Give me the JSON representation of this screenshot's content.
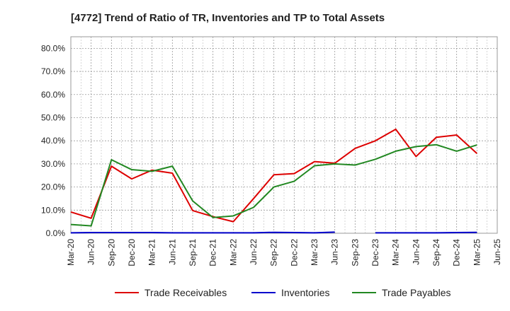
{
  "chart_data": {
    "type": "line",
    "title": "[4772]  Trend of Ratio of TR, Inventories and TP to Total Assets",
    "xlabel": "",
    "ylabel": "",
    "ylim": [
      0,
      85
    ],
    "yticks": [
      0,
      10,
      20,
      30,
      40,
      50,
      60,
      70,
      80
    ],
    "ytick_labels": [
      "0.0%",
      "10.0%",
      "20.0%",
      "30.0%",
      "40.0%",
      "50.0%",
      "60.0%",
      "70.0%",
      "80.0%"
    ],
    "x": [
      "Mar-20",
      "Jun-20",
      "Sep-20",
      "Dec-20",
      "Mar-21",
      "Jun-21",
      "Sep-21",
      "Dec-21",
      "Mar-22",
      "Jun-22",
      "Sep-22",
      "Dec-22",
      "Mar-23",
      "Jun-23",
      "Sep-23",
      "Dec-23",
      "Mar-24",
      "Jun-24",
      "Sep-24",
      "Dec-24",
      "Mar-25",
      "Jun-25"
    ],
    "grid": true,
    "legend_position": "bottom",
    "series": [
      {
        "name": "Trade Receivables",
        "color": "#dd0000",
        "values": [
          9.2,
          6.5,
          29.0,
          23.5,
          27.3,
          26.0,
          9.8,
          7.2,
          5.0,
          15.0,
          25.3,
          25.8,
          31.0,
          30.3,
          36.7,
          40.0,
          45.0,
          33.2,
          41.5,
          42.5,
          34.5,
          null
        ]
      },
      {
        "name": "Inventories",
        "color": "#0000cc",
        "values": [
          0.2,
          0.3,
          0.3,
          0.3,
          0.3,
          0.2,
          0.2,
          0.2,
          0.2,
          0.2,
          0.4,
          0.3,
          0.2,
          0.5,
          null,
          0.2,
          0.2,
          0.2,
          0.2,
          0.3,
          0.4,
          null
        ]
      },
      {
        "name": "Trade Payables",
        "color": "#228822",
        "values": [
          3.8,
          3.2,
          31.8,
          27.5,
          26.8,
          29.0,
          14.0,
          6.8,
          7.5,
          11.2,
          20.0,
          22.5,
          29.2,
          30.0,
          29.5,
          32.0,
          35.5,
          37.5,
          38.3,
          35.5,
          38.2,
          null
        ]
      }
    ]
  }
}
